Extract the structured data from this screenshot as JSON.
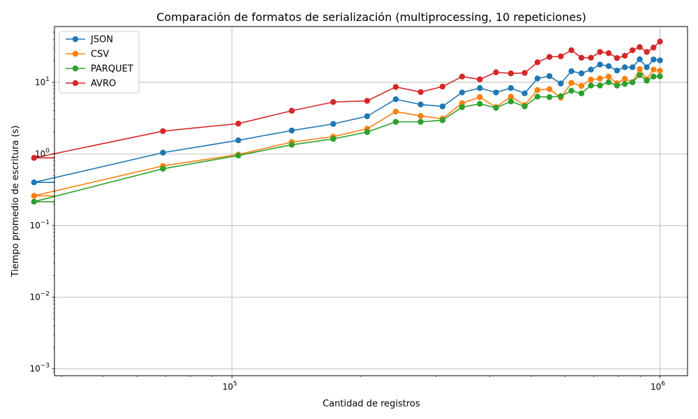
{
  "chart_data": {
    "type": "line",
    "title": "Comparación de formatos de serialización (multiprocessing, 10 repeticiones)",
    "xlabel": "Cantidad de registros",
    "ylabel": "Tiempo promedio de escritura (s)",
    "xscale": "log",
    "yscale": "log",
    "xlim": [
      38500,
      1160000
    ],
    "ylim": [
      0.0008,
      60
    ],
    "grid": true,
    "legend_position": "top-left",
    "x_ticks": [
      {
        "value": 100000,
        "base": "10",
        "exp": "5"
      },
      {
        "value": 1000000,
        "base": "10",
        "exp": "6"
      }
    ],
    "y_ticks": [
      {
        "value": 0.001,
        "base": "10",
        "exp": "−3"
      },
      {
        "value": 0.01,
        "base": "10",
        "exp": "−2"
      },
      {
        "value": 0.1,
        "base": "10",
        "exp": "−1"
      },
      {
        "value": 1,
        "base": "10",
        "exp": "0"
      },
      {
        "value": 10,
        "base": "10",
        "exp": "1"
      }
    ],
    "x": [
      34500,
      69000,
      103500,
      138000,
      172500,
      207000,
      241500,
      276000,
      310500,
      345000,
      379500,
      414000,
      448500,
      483000,
      517500,
      552000,
      586500,
      621000,
      655500,
      690000,
      724500,
      759000,
      793500,
      828000,
      862500,
      897000,
      931500,
      966000,
      1000000
    ],
    "series": [
      {
        "name": "JSON",
        "color": "#1f77b4",
        "values": [
          0.4,
          1.04,
          1.55,
          2.12,
          2.62,
          3.35,
          5.8,
          4.9,
          4.6,
          7.2,
          8.3,
          7.2,
          8.3,
          7.0,
          11.3,
          12.2,
          9.6,
          14.3,
          13.3,
          15.0,
          17.7,
          16.8,
          14.6,
          16.2,
          16.2,
          21.0,
          16.2,
          20.8,
          20.2
        ]
      },
      {
        "name": "CSV",
        "color": "#ff7f0e",
        "values": [
          0.26,
          0.68,
          0.98,
          1.46,
          1.74,
          2.24,
          3.9,
          3.38,
          3.1,
          5.1,
          6.2,
          4.5,
          6.3,
          4.8,
          7.8,
          8.0,
          6.1,
          9.8,
          8.9,
          10.9,
          11.3,
          12.0,
          9.7,
          11.2,
          10.0,
          15.3,
          11.0,
          15.0,
          14.5
        ]
      },
      {
        "name": "PARQUET",
        "color": "#2ca02c",
        "values": [
          0.215,
          0.62,
          0.95,
          1.34,
          1.62,
          2.02,
          2.8,
          2.8,
          2.95,
          4.5,
          5.0,
          4.4,
          5.4,
          4.6,
          6.3,
          6.2,
          6.4,
          7.6,
          7.0,
          9.0,
          9.0,
          10.0,
          9.0,
          9.5,
          10.0,
          12.6,
          10.5,
          12.0,
          12.1
        ]
      },
      {
        "name": "AVRO",
        "color": "#d62728",
        "values": [
          0.88,
          2.08,
          2.65,
          4.0,
          5.3,
          5.5,
          8.6,
          7.3,
          8.7,
          12.0,
          11.0,
          13.8,
          13.3,
          13.5,
          19.0,
          22.6,
          23.0,
          28.0,
          22.0,
          22.0,
          26.5,
          25.5,
          21.8,
          23.5,
          28.0,
          31.0,
          26.5,
          30.5,
          37.0
        ]
      }
    ]
  }
}
